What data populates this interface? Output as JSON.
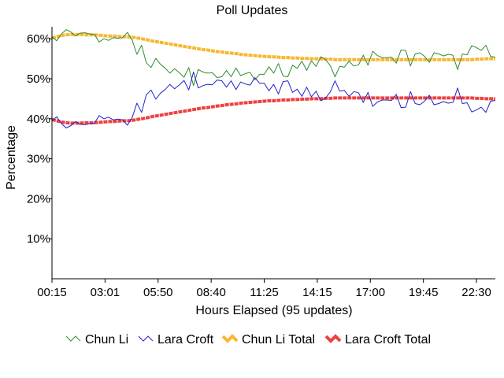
{
  "chart_data": {
    "type": "line",
    "title": "Poll Updates",
    "xlabel": "Hours Elapsed (95 updates)",
    "ylabel": "Percentage",
    "x_tick_labels": [
      "00:15",
      "03:01",
      "05:50",
      "08:40",
      "11:25",
      "14:15",
      "17:00",
      "19:45",
      "22:30"
    ],
    "y_ticks": [
      10,
      20,
      30,
      40,
      50,
      60
    ],
    "y_tick_labels": [
      "10%",
      "20%",
      "30%",
      "40%",
      "50%",
      "60%"
    ],
    "ylim": [
      0,
      63
    ],
    "num_updates": 95,
    "grid": false,
    "legend_position": "bottom",
    "series": [
      {
        "name": "Chun Li",
        "color": "#2e8b2e",
        "style": "thin",
        "values": [
          60.5,
          59.5,
          61.2,
          62.3,
          61.7,
          60.7,
          61.4,
          61.5,
          61.2,
          61.1,
          59.2,
          60.0,
          59.6,
          60.3,
          60.1,
          60.3,
          61.6,
          59.7,
          56.1,
          58.4,
          54.0,
          52.8,
          55.1,
          53.6,
          52.7,
          51.4,
          52.5,
          51.5,
          50.4,
          52.8,
          48.3,
          52.3,
          51.7,
          51.4,
          51.5,
          50.3,
          50.5,
          52.1,
          50.5,
          52.7,
          50.8,
          51.3,
          51.6,
          49.7,
          51.1,
          51.1,
          53.0,
          51.4,
          53.8,
          50.7,
          50.5,
          53.4,
          52.6,
          54.4,
          52.1,
          54.5,
          53.1,
          55.5,
          54.8,
          53.3,
          50.5,
          53.1,
          52.9,
          54.4,
          53.2,
          53.5,
          55.9,
          53.4,
          56.9,
          55.8,
          55.3,
          55.3,
          55.4,
          53.9,
          57.2,
          57.1,
          53.2,
          56.2,
          56.5,
          55.6,
          54.1,
          56.5,
          56.2,
          55.7,
          56.1,
          55.9,
          52.3,
          56.2,
          56.0,
          58.3,
          57.8,
          57.1,
          58.4,
          55.6,
          55.4
        ]
      },
      {
        "name": "Lara Croft",
        "color": "#2222cc",
        "style": "thin",
        "values": [
          39.5,
          40.5,
          38.8,
          37.7,
          38.3,
          39.3,
          38.6,
          38.5,
          38.8,
          38.9,
          40.8,
          40.0,
          40.4,
          39.7,
          39.9,
          39.7,
          38.4,
          40.3,
          43.9,
          41.6,
          46.0,
          47.2,
          44.9,
          46.4,
          47.3,
          48.6,
          47.5,
          48.5,
          49.6,
          47.2,
          51.7,
          47.7,
          48.3,
          48.6,
          48.5,
          49.7,
          49.5,
          47.9,
          49.5,
          47.3,
          49.2,
          48.7,
          48.4,
          50.3,
          48.9,
          48.9,
          47.0,
          48.6,
          46.2,
          49.3,
          49.5,
          46.6,
          47.4,
          45.6,
          47.9,
          45.5,
          46.9,
          44.5,
          45.2,
          46.7,
          49.5,
          46.9,
          47.1,
          45.6,
          46.8,
          46.5,
          44.1,
          46.6,
          43.1,
          44.2,
          44.7,
          44.7,
          44.6,
          46.1,
          42.8,
          42.9,
          46.8,
          43.8,
          43.5,
          44.4,
          45.9,
          43.5,
          43.8,
          44.3,
          43.9,
          44.1,
          47.7,
          43.8,
          44.0,
          41.7,
          42.2,
          42.9,
          41.6,
          44.4,
          44.6
        ]
      },
      {
        "name": "Chun Li Total",
        "color": "#f7b731",
        "style": "thick",
        "values": [
          60.2,
          60.5,
          60.8,
          61.0,
          61.1,
          61.1,
          61.1,
          61.0,
          61.0,
          61.0,
          60.9,
          60.8,
          60.7,
          60.7,
          60.6,
          60.5,
          60.5,
          60.4,
          60.2,
          60.0,
          59.8,
          59.5,
          59.3,
          59.1,
          58.9,
          58.7,
          58.5,
          58.3,
          58.1,
          57.9,
          57.7,
          57.5,
          57.3,
          57.2,
          57.0,
          56.8,
          56.7,
          56.5,
          56.4,
          56.3,
          56.1,
          56.0,
          55.9,
          55.8,
          55.7,
          55.6,
          55.5,
          55.5,
          55.4,
          55.3,
          55.3,
          55.2,
          55.2,
          55.1,
          55.1,
          55.0,
          55.0,
          55.0,
          54.9,
          54.9,
          54.8,
          54.8,
          54.8,
          54.8,
          54.8,
          54.8,
          54.8,
          54.8,
          54.8,
          54.8,
          54.8,
          54.8,
          54.8,
          54.8,
          54.8,
          54.8,
          54.8,
          54.8,
          54.8,
          54.8,
          54.8,
          54.8,
          54.8,
          54.8,
          54.8,
          54.8,
          54.8,
          54.8,
          54.8,
          54.8,
          54.9,
          54.9,
          55.0,
          55.0,
          55.0
        ]
      },
      {
        "name": "Lara Croft Total",
        "color": "#ee4040",
        "style": "thick",
        "values": [
          39.8,
          39.5,
          39.2,
          39.0,
          38.9,
          38.9,
          38.9,
          39.0,
          39.0,
          39.0,
          39.1,
          39.2,
          39.3,
          39.3,
          39.4,
          39.5,
          39.5,
          39.6,
          39.8,
          40.0,
          40.2,
          40.5,
          40.7,
          40.9,
          41.1,
          41.3,
          41.5,
          41.7,
          41.9,
          42.1,
          42.3,
          42.5,
          42.7,
          42.8,
          43.0,
          43.2,
          43.3,
          43.5,
          43.6,
          43.7,
          43.9,
          44.0,
          44.1,
          44.2,
          44.3,
          44.4,
          44.5,
          44.5,
          44.6,
          44.7,
          44.7,
          44.8,
          44.8,
          44.9,
          44.9,
          45.0,
          45.0,
          45.0,
          45.1,
          45.1,
          45.2,
          45.2,
          45.2,
          45.2,
          45.2,
          45.2,
          45.2,
          45.2,
          45.2,
          45.2,
          45.2,
          45.2,
          45.2,
          45.2,
          45.2,
          45.2,
          45.2,
          45.2,
          45.2,
          45.2,
          45.2,
          45.2,
          45.2,
          45.2,
          45.2,
          45.2,
          45.2,
          45.2,
          45.2,
          45.2,
          45.1,
          45.1,
          45.0,
          45.0,
          45.0
        ]
      }
    ]
  }
}
